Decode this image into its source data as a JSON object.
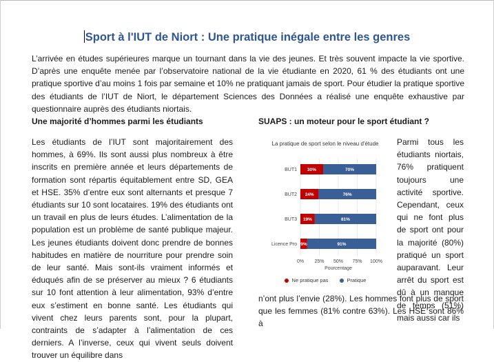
{
  "document": {
    "title": "Sport à l'IUT de Niort : Une pratique inégale entre les genres",
    "intro": "L’arrivée en études supérieures marque un tournant dans la vie des jeunes. Et très souvent impacte la vie sportive. D’après une enquête menée par l’observatoire national de la vie étudiante en 2020, 61 % des étudiants ont une pratique sportive d’au moins 1 fois par semaine et 10% ne pratiquant jamais de sport. Pour étudier la pratique sportive des étudiants de l’IUT de Niort, le département Sciences des Données a réalisé une enquête exhaustive par questionnaire auprès des étudiants niortais.",
    "left_heading": "Une majorité d’hommes parmi les étudiants",
    "left_text": "Les étudiants de l’IUT sont majoritairement des hommes, à 69%. Ils sont aussi plus nombreux à être inscrits en première année et leurs départements de formation sont répartis équitablement entre SD, GEA et HSE. 35% d’entre eux sont alternants et presque 7 étudiants sur 10 sont locataires. 19% des étudiants ont un travail en plus de leurs études. L’alimentation de la population est un problème de santé publique majeur. Les jeunes étudiants doivent donc prendre de bonnes habitudes en matière de nourriture pour prendre soin de leur santé. Mais sont-ils vraiment informés et éduqués afin de se préserver au mieux ? 6 étudiants sur 10 font attention à leur alimentation, 93% d’entre eux s’estiment en bonne santé. Les étudiants qui vivent chez leurs parents sont, pour la plupart, contraints de s’adapter à l’alimentation de ces derniers. A l’inverse, ceux qui vivent seuls doivent trouver un équilibre dans",
    "right_heading": "SUAPS : un moteur pour le sport étudiant ?",
    "right_text_narrow": "Parmi tous les étudiants niortais, 76% pratiquent toujours une activité sportive. Cependant, ceux qui ne font plus de sport ont pour la majorité (80%) pratiqué un sport auparavant. Leur arrêt du sport est dû à un manque de temps (51%) mais aussi car ils",
    "right_text_wide": "n’ont plus l’envie (28%). Les hommes font plus de sport que les femmes (81% contre 63%). Les HSE sont 86% à"
  },
  "chart_data": {
    "type": "bar",
    "orientation": "horizontal",
    "stacked": true,
    "title": "La pratique de sport selon le niveau d'étude",
    "categories": [
      "BUT1",
      "BUT2",
      "BUT3",
      "Licence Pro"
    ],
    "series": [
      {
        "name": "Ne pratique pas",
        "values": [
          30,
          24,
          19,
          9
        ],
        "labels": [
          "30%",
          "24%",
          "19%",
          "9%"
        ],
        "color": "#c00000"
      },
      {
        "name": "Pratique",
        "values": [
          70,
          76,
          81,
          91
        ],
        "labels": [
          "70%",
          "76%",
          "81%",
          "91%"
        ],
        "color": "#3a5f96"
      }
    ],
    "xlabel": "Pourcentage",
    "xticks": [
      "0%",
      "25%",
      "50%",
      "75%",
      "100%"
    ],
    "xlim": [
      0,
      100
    ],
    "grid": true,
    "legend": "bottom"
  }
}
